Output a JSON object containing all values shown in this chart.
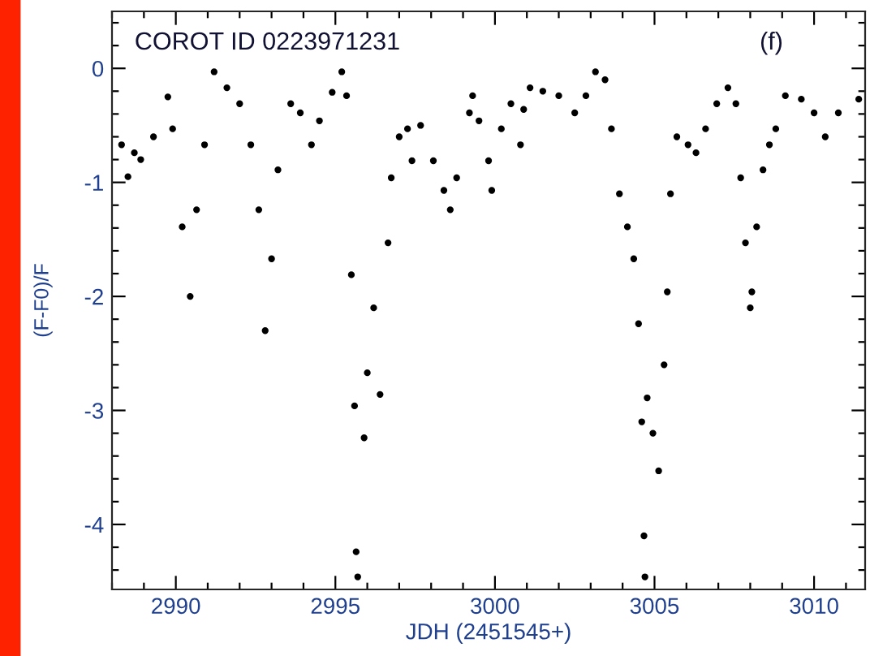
{
  "chart_data": {
    "type": "scatter",
    "xlabel": "JDH (2451545+)",
    "ylabel": "(F-F0)/F",
    "annotations": [
      "COROT ID 0223971231",
      "(f)"
    ],
    "marker": "circle",
    "grid": false,
    "xlim": [
      2988,
      3011.6
    ],
    "ylim": [
      -4.57,
      0.5
    ],
    "xticks": [
      {
        "value": 2988,
        "label": null
      },
      {
        "value": 2989,
        "label": null
      },
      2990,
      {
        "value": 2991,
        "label": null
      },
      {
        "value": 2992,
        "label": null
      },
      {
        "value": 2993,
        "label": null
      },
      {
        "value": 2994,
        "label": null
      },
      2995,
      {
        "value": 2996,
        "label": null
      },
      {
        "value": 2997,
        "label": null
      },
      {
        "value": 2998,
        "label": null
      },
      {
        "value": 2999,
        "label": null
      },
      3000,
      {
        "value": 3001,
        "label": null
      },
      {
        "value": 3002,
        "label": null
      },
      {
        "value": 3003,
        "label": null
      },
      {
        "value": 3004,
        "label": null
      },
      3005,
      {
        "value": 3006,
        "label": null
      },
      {
        "value": 3007,
        "label": null
      },
      {
        "value": 3008,
        "label": null
      },
      {
        "value": 3009,
        "label": null
      },
      3010,
      {
        "value": 3011,
        "label": null
      }
    ],
    "yticks": [
      {
        "value": -4.4,
        "label": null
      },
      {
        "value": -4.2,
        "label": null
      },
      -4,
      {
        "value": -3.8,
        "label": null
      },
      {
        "value": -3.6,
        "label": null
      },
      {
        "value": -3.4,
        "label": null
      },
      {
        "value": -3.2,
        "label": null
      },
      -3,
      {
        "value": -2.8,
        "label": null
      },
      {
        "value": -2.6,
        "label": null
      },
      {
        "value": -2.4,
        "label": null
      },
      {
        "value": -2.2,
        "label": null
      },
      -2,
      {
        "value": -1.8,
        "label": null
      },
      {
        "value": -1.6,
        "label": null
      },
      {
        "value": -1.4,
        "label": null
      },
      {
        "value": -1.2,
        "label": null
      },
      -1,
      {
        "value": -0.8,
        "label": null
      },
      {
        "value": -0.6,
        "label": null
      },
      {
        "value": -0.4,
        "label": null
      },
      {
        "value": -0.2,
        "label": null
      },
      0,
      {
        "value": 0.2,
        "label": null
      },
      {
        "value": 0.4,
        "label": null
      }
    ],
    "series": [
      {
        "color": "#000000",
        "x": [
          2988.3,
          2988.5,
          2988.7,
          2988.9,
          2989.3,
          2989.75,
          2989.9,
          2990.2,
          2990.45,
          2990.65,
          2990.9,
          2991.2,
          2991.6,
          2992.0,
          2992.35,
          2992.6,
          2992.8,
          2993.0,
          2993.2,
          2993.6,
          2993.9,
          2994.25,
          2994.5,
          2994.9,
          2995.2,
          2995.35,
          2995.5,
          2995.6,
          2995.65,
          2995.7,
          2995.9,
          2996.0,
          2996.2,
          2996.4,
          2996.65,
          2996.75,
          2997.0,
          2997.26,
          2997.4,
          2997.67,
          2998.07,
          2998.4,
          2998.6,
          2998.8,
          2999.2,
          2999.3,
          2999.5,
          2999.8,
          2999.9,
          3000.2,
          3000.5,
          3000.8,
          3000.9,
          3001.1,
          3001.5,
          3002.0,
          3002.5,
          3002.85,
          3003.15,
          3003.45,
          3003.65,
          3003.9,
          3004.15,
          3004.35,
          3004.5,
          3004.6,
          3004.67,
          3004.7,
          3004.77,
          3004.95,
          3005.13,
          3005.3,
          3005.4,
          3005.5,
          3005.7,
          3006.05,
          3006.3,
          3006.6,
          3006.95,
          3007.3,
          3007.55,
          3007.7,
          3007.85,
          3008.0,
          3008.05,
          3008.2,
          3008.4,
          3008.6,
          3008.8,
          3009.1,
          3009.6,
          3010.0,
          3010.35,
          3010.76,
          3011.4
        ],
        "values": [
          -0.67,
          -0.95,
          -0.74,
          -0.8,
          -0.6,
          -0.25,
          -0.53,
          -1.39,
          -2.0,
          -1.24,
          -0.67,
          -0.03,
          -0.17,
          -0.31,
          -0.67,
          -1.24,
          -2.3,
          -1.67,
          -0.89,
          -0.31,
          -0.39,
          -0.67,
          -0.46,
          -0.21,
          -0.03,
          -0.24,
          -1.81,
          -2.96,
          -4.24,
          -4.46,
          -3.24,
          -2.67,
          -2.1,
          -2.86,
          -1.53,
          -0.96,
          -0.6,
          -0.53,
          -0.81,
          -0.5,
          -0.81,
          -1.07,
          -1.24,
          -0.96,
          -0.39,
          -0.24,
          -0.46,
          -0.81,
          -1.07,
          -0.53,
          -0.31,
          -0.67,
          -0.36,
          -0.17,
          -0.2,
          -0.24,
          -0.39,
          -0.24,
          -0.03,
          -0.1,
          -0.53,
          -1.1,
          -1.39,
          -1.67,
          -2.24,
          -3.1,
          -4.1,
          -4.46,
          -2.89,
          -3.2,
          -3.53,
          -2.6,
          -1.96,
          -1.1,
          -0.6,
          -0.67,
          -0.74,
          -0.53,
          -0.31,
          -0.17,
          -0.31,
          -0.96,
          -1.53,
          -2.1,
          -1.96,
          -1.39,
          -0.89,
          -0.67,
          -0.53,
          -0.24,
          -0.27,
          -0.39,
          -0.6,
          -0.39,
          -0.27
        ]
      }
    ]
  }
}
